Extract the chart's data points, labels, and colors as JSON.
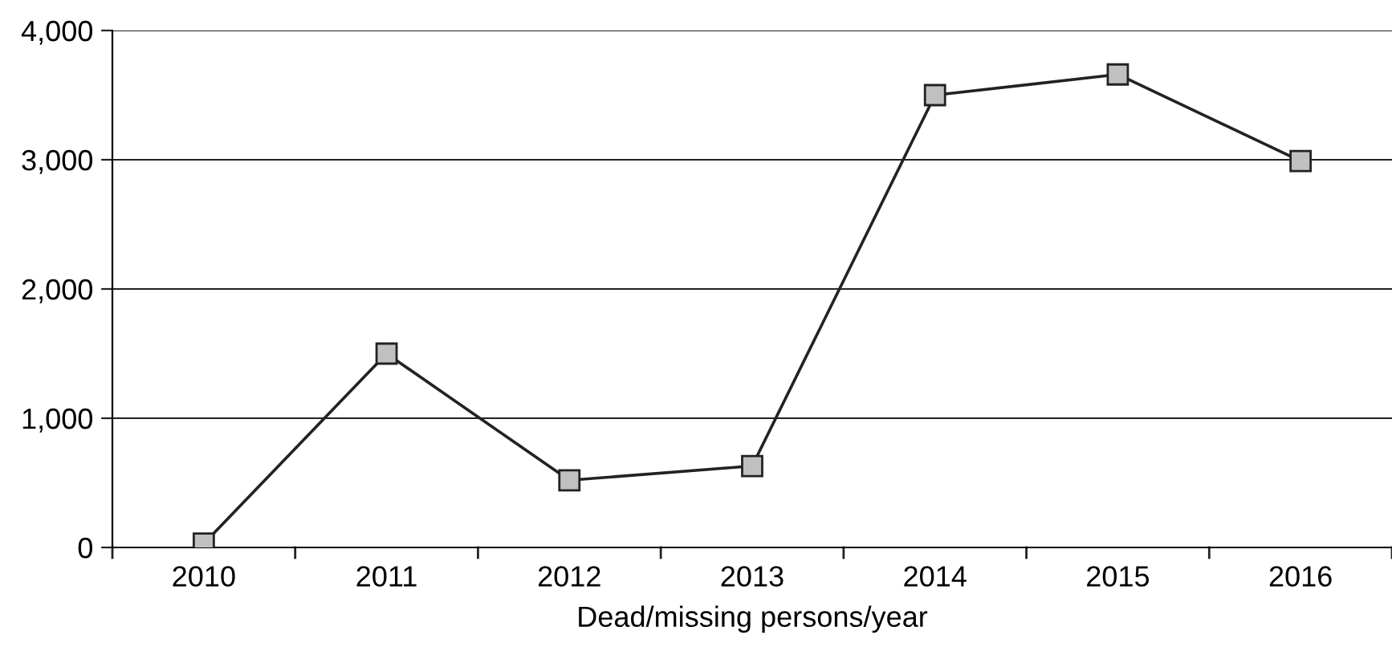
{
  "chart_data": {
    "type": "line",
    "xlabel": "Dead/missing persons/year",
    "categories": [
      "2010",
      "2011",
      "2012",
      "2013",
      "2014",
      "2015",
      "2016"
    ],
    "series": [
      {
        "color": "#222222",
        "values": [
          30,
          1500,
          520,
          630,
          3500,
          3660,
          2990
        ]
      }
    ],
    "ylim": [
      0,
      4000
    ],
    "yticks": [
      {
        "value": 0,
        "label": "0"
      },
      {
        "value": 1000,
        "label": "1,000"
      },
      {
        "value": 2000,
        "label": "2,000"
      },
      {
        "value": 3000,
        "label": "3,000"
      },
      {
        "value": 4000,
        "label": "4,000"
      }
    ],
    "grid": "y",
    "marker": "square",
    "line_style": "solid"
  }
}
